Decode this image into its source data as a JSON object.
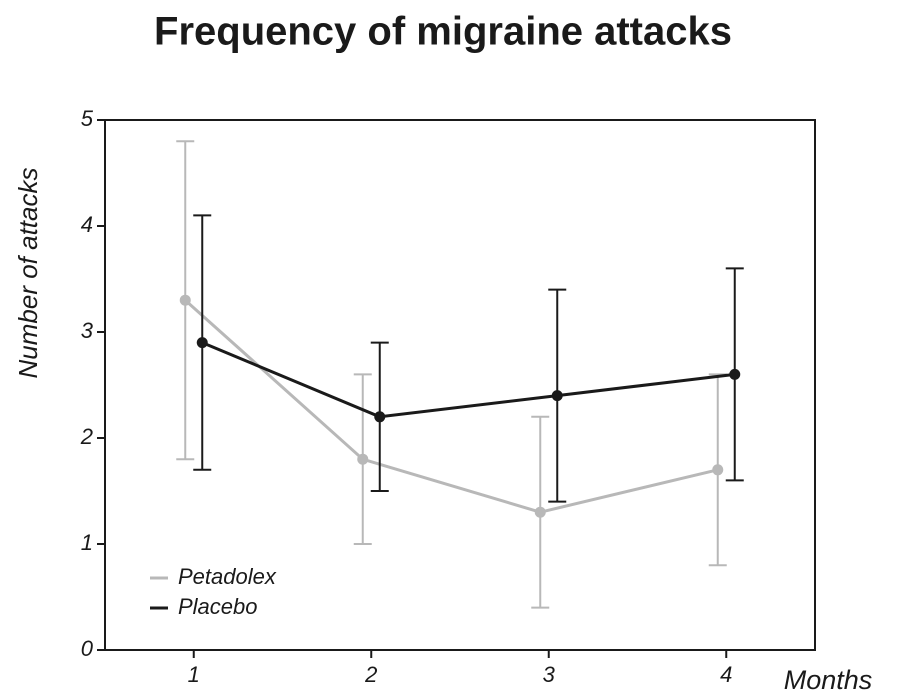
{
  "chart_data": {
    "type": "line",
    "title": "Frequency of migraine attacks",
    "x_label": "Months",
    "y_label": "Number of attacks",
    "x": [
      1,
      2,
      3,
      4
    ],
    "series": [
      {
        "name": "Petadolex",
        "color": "#b8b8b8",
        "values": [
          3.3,
          1.8,
          1.3,
          1.7
        ],
        "errors": [
          1.5,
          0.8,
          0.9,
          0.9
        ]
      },
      {
        "name": "Placebo",
        "color": "#1a1a1a",
        "values": [
          2.9,
          2.2,
          2.4,
          2.6
        ],
        "errors": [
          1.2,
          0.7,
          1.0,
          1.0
        ]
      }
    ],
    "xlim": [
      0.5,
      4.5
    ],
    "xticks": [
      1,
      2,
      3,
      4
    ],
    "ylim": [
      0,
      5
    ],
    "yticks": [
      0,
      1,
      2,
      3,
      4,
      5
    ],
    "legend": "lower left",
    "grid": false
  }
}
